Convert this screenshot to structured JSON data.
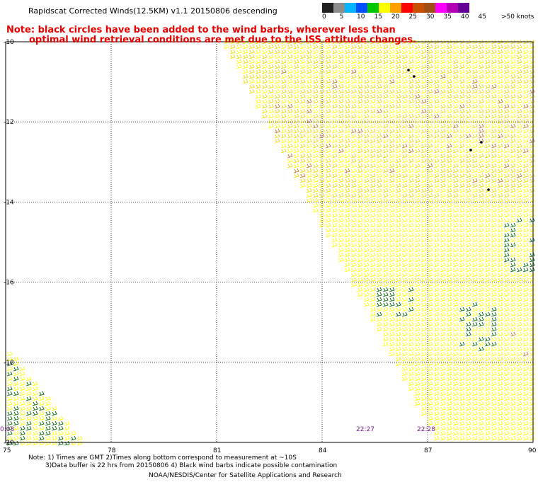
{
  "header": {
    "title": "Rapidscat Corrected Winds(12.5KM) v1.1 20150806 descending",
    "note_line1": "Note: black circles have been added to the wind barbs, wherever less than",
    "note_line2": "optimal wind retrieval conditions are met due to the ISS attitude changes."
  },
  "legend": {
    "unit_label": ">50 knots",
    "ticks": [
      "0",
      "5",
      "10",
      "15",
      "20",
      "25",
      "30",
      "35",
      "40",
      "45"
    ],
    "colors": [
      "#202020",
      "#8c8c8c",
      "#00b4ff",
      "#0050ff",
      "#00c800",
      "#ffff00",
      "#ffa000",
      "#ff0000",
      "#c85000",
      "#a05014",
      "#ff00ff",
      "#b400b4",
      "#640096"
    ]
  },
  "map": {
    "lat_labels": [
      "-10",
      "-12",
      "-14",
      "-16",
      "-18",
      "-20"
    ],
    "lon_labels": [
      "75",
      "78",
      "81",
      "84",
      "87",
      "90"
    ],
    "time_labels": [
      "0:03",
      "22:27",
      "22:28"
    ],
    "colors": {
      "grid": "#000000",
      "barb_light": "#f0d800",
      "barb_yellow": "#ffff00",
      "barb_orange": "#c87820",
      "barb_green": "#006400"
    }
  },
  "footer": {
    "note1": "Note: 1) Times are GMT 2)Times along bottom correspond to measurement at ~10S",
    "note2": "3)Data buffer is 22 hrs from 20150806 4) Black wind barbs indicate possible contamination",
    "credit": "NOAA/NESDIS/Center for Satellite Applications and Research"
  }
}
